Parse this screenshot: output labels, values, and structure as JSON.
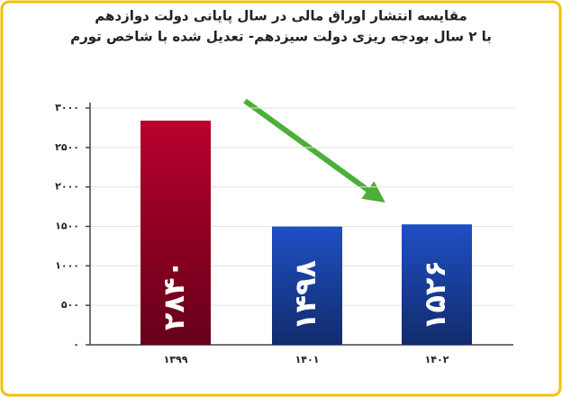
{
  "chart_data": {
    "type": "bar",
    "title": "مقایسه انتشار اوراق مالی در سال پایانی دولت دوازدهم",
    "subtitle": "با ۲ سال بودجه ریزی دولت سیزدهم- تعدیل شده با شاخص تورم",
    "categories": [
      "۱۳۹۹",
      "۱۴۰۱",
      "۱۴۰۲"
    ],
    "values": [
      2840,
      1498,
      1526
    ],
    "value_labels": [
      "۲۸۴۰",
      "۱۴۹۸",
      "۱۵۲۶"
    ],
    "colors": [
      "#b8002e",
      "#1f4fc4",
      "#1f4fc4"
    ],
    "ylim": [
      0,
      3000
    ],
    "yticks": [
      {
        "value": 0,
        "label": "۰"
      },
      {
        "value": 500,
        "label": "۵۰۰"
      },
      {
        "value": 1000,
        "label": "۱۰۰۰"
      },
      {
        "value": 1500,
        "label": "۱۵۰۰"
      },
      {
        "value": 2000,
        "label": "۲۰۰۰"
      },
      {
        "value": 2500,
        "label": "۲۵۰۰"
      },
      {
        "value": 3000,
        "label": "۳۰۰۰"
      }
    ],
    "grid": true
  }
}
